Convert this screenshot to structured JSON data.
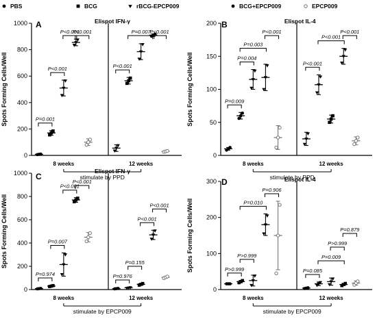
{
  "legend": [
    {
      "name": "PBS",
      "marker": "circle"
    },
    {
      "name": "BCG",
      "marker": "square"
    },
    {
      "name": "rBCG-EPCP009",
      "marker": "triangle-down"
    },
    {
      "name": "BCG+EPCP009",
      "marker": "circle"
    },
    {
      "name": "EPCP009",
      "marker": "circle-open"
    }
  ],
  "chart_data": [
    {
      "type": "scatter",
      "letter": "A",
      "title": "Elispot  IFN-γ",
      "ylabel": "Spots Forming Cells/Well",
      "ylim": [
        0,
        1000
      ],
      "yticks": [
        0,
        200,
        400,
        600,
        800,
        1000
      ],
      "groups": [
        "8 weeks",
        "12 weeks"
      ],
      "stimulus": "stimulate by PPD",
      "series": [
        {
          "group": "8 weeks",
          "name": "PBS",
          "marker": "circle",
          "color": "#000000",
          "mean": 8,
          "sd": 3,
          "points": [
            6,
            8,
            10
          ]
        },
        {
          "group": "8 weeks",
          "name": "BCG",
          "marker": "square",
          "color": "#000000",
          "mean": 170,
          "sd": 18,
          "points": [
            155,
            170,
            185
          ]
        },
        {
          "group": "8 weeks",
          "name": "rBCG-EPCP009",
          "marker": "triangle-down",
          "color": "#000000",
          "mean": 510,
          "sd": 60,
          "points": [
            455,
            510,
            565
          ]
        },
        {
          "group": "8 weeks",
          "name": "BCG+EPCP009",
          "marker": "triangle-down",
          "color": "#000000",
          "mean": 855,
          "sd": 25,
          "points": [
            835,
            855,
            875
          ]
        },
        {
          "group": "8 weeks",
          "name": "EPCP009",
          "marker": "circle-open",
          "color": "#777777",
          "mean": 100,
          "sd": 25,
          "points": [
            80,
            100,
            120
          ]
        },
        {
          "group": "12 weeks",
          "name": "PBS",
          "marker": "triangle-down",
          "color": "#000000",
          "mean": 55,
          "sd": 25,
          "points": [
            35,
            55,
            75
          ]
        },
        {
          "group": "12 weeks",
          "name": "BCG",
          "marker": "square",
          "color": "#000000",
          "mean": 565,
          "sd": 25,
          "points": [
            545,
            565,
            585
          ]
        },
        {
          "group": "12 weeks",
          "name": "rBCG-EPCP009",
          "marker": "triangle-down",
          "color": "#000000",
          "mean": 785,
          "sd": 60,
          "points": [
            730,
            785,
            840
          ]
        },
        {
          "group": "12 weeks",
          "name": "BCG+EPCP009",
          "marker": "circle",
          "color": "#000000",
          "mean": 910,
          "sd": 10,
          "points": [
            902,
            910,
            918
          ]
        },
        {
          "group": "12 weeks",
          "name": "EPCP009",
          "marker": "circle-open",
          "color": "#777777",
          "mean": 30,
          "sd": 5,
          "points": [
            26,
            30,
            34
          ]
        }
      ],
      "comparisons": [
        {
          "from": 0,
          "to": 1,
          "text": "P=0.001"
        },
        {
          "from": 1,
          "to": 2,
          "text": "P<0.001"
        },
        {
          "from": 2,
          "to": 3,
          "text": "P<0.001"
        },
        {
          "from": 3,
          "to": 4,
          "text": "P<0.001"
        },
        {
          "from": 5,
          "to": 6,
          "text": "P<0.001"
        },
        {
          "from": 6,
          "to": 8,
          "text": "P=0.007"
        },
        {
          "from": 8,
          "to": 9,
          "text": "P<0.001"
        }
      ]
    },
    {
      "type": "scatter",
      "letter": "B",
      "title": "Elispot  IL-4",
      "ylabel": "Spots Forming Cells/Well",
      "ylim": [
        0,
        200
      ],
      "yticks": [
        0,
        50,
        100,
        150,
        200
      ],
      "groups": [
        "8 weeks",
        "12 weeks"
      ],
      "stimulus": "stimulate by PPD",
      "series": [
        {
          "group": "8 weeks",
          "name": "PBS",
          "marker": "circle",
          "color": "#000000",
          "mean": 10,
          "sd": 2,
          "points": [
            8,
            10,
            12
          ]
        },
        {
          "group": "8 weeks",
          "name": "BCG",
          "marker": "circle",
          "color": "#000000",
          "mean": 60,
          "sd": 5,
          "points": [
            56,
            60,
            64
          ]
        },
        {
          "group": "8 weeks",
          "name": "rBCG-EPCP009",
          "marker": "triangle-down",
          "color": "#000000",
          "mean": 115,
          "sd": 15,
          "points": [
            102,
            115,
            128
          ]
        },
        {
          "group": "8 weeks",
          "name": "BCG+EPCP009",
          "marker": "triangle-down",
          "color": "#000000",
          "mean": 118,
          "sd": 20,
          "points": [
            100,
            118,
            136
          ]
        },
        {
          "group": "8 weeks",
          "name": "EPCP009",
          "marker": "circle-open",
          "color": "#777777",
          "mean": 27,
          "sd": 18,
          "points": [
            12,
            27,
            42
          ]
        },
        {
          "group": "12 weeks",
          "name": "PBS",
          "marker": "triangle-down",
          "color": "#000000",
          "mean": 25,
          "sd": 10,
          "points": [
            17,
            25,
            33
          ]
        },
        {
          "group": "12 weeks",
          "name": "BCG",
          "marker": "triangle-down",
          "color": "#000000",
          "mean": 107,
          "sd": 15,
          "points": [
            95,
            107,
            119
          ]
        },
        {
          "group": "12 weeks",
          "name": "rBCG-EPCP009",
          "marker": "square",
          "color": "#000000",
          "mean": 55,
          "sd": 6,
          "points": [
            50,
            55,
            60
          ]
        },
        {
          "group": "12 weeks",
          "name": "BCG+EPCP009",
          "marker": "triangle-down",
          "color": "#000000",
          "mean": 150,
          "sd": 12,
          "points": [
            140,
            150,
            160
          ]
        },
        {
          "group": "12 weeks",
          "name": "EPCP009",
          "marker": "circle-open",
          "color": "#777777",
          "mean": 22,
          "sd": 6,
          "points": [
            17,
            22,
            27
          ]
        }
      ],
      "comparisons": [
        {
          "from": 0,
          "to": 1,
          "text": "P=0.009"
        },
        {
          "from": 1,
          "to": 2,
          "text": "P=0.004"
        },
        {
          "from": 1,
          "to": 3,
          "text": "P=0.003"
        },
        {
          "from": 3,
          "to": 4,
          "text": "P<0.001"
        },
        {
          "from": 5,
          "to": 6,
          "text": "P<0.001"
        },
        {
          "from": 6,
          "to": 8,
          "text": "P<0.001"
        },
        {
          "from": 8,
          "to": 9,
          "text": "P<0.001"
        }
      ]
    },
    {
      "type": "scatter",
      "letter": "C",
      "title": "Elispot  IFN-γ",
      "ylabel": "Spots Forming Cells/Well",
      "ylim": [
        0,
        1000
      ],
      "yticks": [
        0,
        200,
        400,
        600,
        800,
        1000
      ],
      "groups": [
        "8 weeks",
        "12 weeks"
      ],
      "stimulus": "stimulate by EPCP009",
      "series": [
        {
          "group": "8 weeks",
          "name": "PBS",
          "marker": "circle",
          "color": "#000000",
          "mean": 8,
          "sd": 2,
          "points": [
            6,
            8,
            10
          ]
        },
        {
          "group": "8 weeks",
          "name": "BCG",
          "marker": "square",
          "color": "#000000",
          "mean": 30,
          "sd": 5,
          "points": [
            26,
            30,
            34
          ]
        },
        {
          "group": "8 weeks",
          "name": "rBCG-EPCP009",
          "marker": "triangle-down",
          "color": "#000000",
          "mean": 215,
          "sd": 100,
          "points": [
            130,
            215,
            300
          ]
        },
        {
          "group": "8 weeks",
          "name": "BCG+EPCP009",
          "marker": "square",
          "color": "#000000",
          "mean": 770,
          "sd": 20,
          "points": [
            755,
            770,
            785
          ]
        },
        {
          "group": "8 weeks",
          "name": "EPCP009",
          "marker": "circle-open",
          "color": "#777777",
          "mean": 450,
          "sd": 40,
          "points": [
            415,
            450,
            485
          ]
        },
        {
          "group": "12 weeks",
          "name": "PBS",
          "marker": "circle",
          "color": "#000000",
          "mean": 8,
          "sd": 2,
          "points": [
            6,
            8,
            10
          ]
        },
        {
          "group": "12 weeks",
          "name": "BCG",
          "marker": "triangle-down",
          "color": "#000000",
          "mean": 15,
          "sd": 3,
          "points": [
            12,
            15,
            18
          ]
        },
        {
          "group": "12 weeks",
          "name": "rBCG-EPCP009",
          "marker": "square",
          "color": "#000000",
          "mean": 45,
          "sd": 8,
          "points": [
            38,
            45,
            52
          ]
        },
        {
          "group": "12 weeks",
          "name": "BCG+EPCP009",
          "marker": "triangle-down",
          "color": "#000000",
          "mean": 470,
          "sd": 40,
          "points": [
            435,
            470,
            505
          ]
        },
        {
          "group": "12 weeks",
          "name": "EPCP009",
          "marker": "circle-open",
          "color": "#777777",
          "mean": 105,
          "sd": 8,
          "points": [
            98,
            105,
            112
          ]
        }
      ],
      "comparisons": [
        {
          "from": 0,
          "to": 1,
          "text": "P=0.974"
        },
        {
          "from": 1,
          "to": 2,
          "text": "P=0.007"
        },
        {
          "from": 2,
          "to": 3,
          "text": "P<0.001"
        },
        {
          "from": 3,
          "to": 4,
          "text": "P<0.001"
        },
        {
          "from": 5,
          "to": 6,
          "text": "P=0.976"
        },
        {
          "from": 6,
          "to": 7,
          "text": "P=0.155"
        },
        {
          "from": 7,
          "to": 8,
          "text": "P<0.001"
        },
        {
          "from": 8,
          "to": 9,
          "text": "P<0.001"
        }
      ]
    },
    {
      "type": "scatter",
      "letter": "D",
      "title": "Elispot  IL-4",
      "ylabel": "Spots Forming Cells/Well",
      "ylim": [
        0,
        300
      ],
      "yticks": [
        0,
        100,
        200,
        300
      ],
      "groups": [
        "8 weeks",
        "12 weeks"
      ],
      "stimulus": "stimulate by EPCP009",
      "series": [
        {
          "group": "8 weeks",
          "name": "PBS",
          "marker": "circle",
          "color": "#000000",
          "mean": 16,
          "sd": 1,
          "points": [
            16,
            16,
            16
          ]
        },
        {
          "group": "8 weeks",
          "name": "BCG",
          "marker": "square",
          "color": "#000000",
          "mean": 22,
          "sd": 3,
          "points": [
            19,
            22,
            25
          ]
        },
        {
          "group": "8 weeks",
          "name": "rBCG-EPCP009",
          "marker": "triangle-down",
          "color": "#000000",
          "mean": 25,
          "sd": 15,
          "points": [
            12,
            25,
            38
          ]
        },
        {
          "group": "8 weeks",
          "name": "BCG+EPCP009",
          "marker": "triangle-down",
          "color": "#000000",
          "mean": 180,
          "sd": 30,
          "points": [
            155,
            180,
            205
          ]
        },
        {
          "group": "8 weeks",
          "name": "EPCP009",
          "marker": "circle-open",
          "color": "#777777",
          "mean": 150,
          "sd": 95,
          "points": [
            45,
            150,
            235
          ]
        },
        {
          "group": "12 weeks",
          "name": "PBS",
          "marker": "circle",
          "color": "#000000",
          "mean": 4,
          "sd": 1,
          "points": [
            3,
            4,
            5
          ]
        },
        {
          "group": "12 weeks",
          "name": "BCG",
          "marker": "triangle-down",
          "color": "#000000",
          "mean": 16,
          "sd": 5,
          "points": [
            12,
            16,
            20
          ]
        },
        {
          "group": "12 weeks",
          "name": "rBCG-EPCP009",
          "marker": "triangle-down",
          "color": "#000000",
          "mean": 22,
          "sd": 10,
          "points": [
            14,
            22,
            30
          ]
        },
        {
          "group": "12 weeks",
          "name": "BCG+EPCP009",
          "marker": "square",
          "color": "#000000",
          "mean": 14,
          "sd": 3,
          "points": [
            11,
            14,
            17
          ]
        },
        {
          "group": "12 weeks",
          "name": "EPCP009",
          "marker": "circle-open",
          "color": "#777777",
          "mean": 18,
          "sd": 6,
          "points": [
            13,
            18,
            23
          ]
        }
      ],
      "comparisons": [
        {
          "from": 0,
          "to": 1,
          "text": "P>0.999"
        },
        {
          "from": 1,
          "to": 2,
          "text": "P>0.999"
        },
        {
          "from": 1,
          "to": 3,
          "text": "P=0.010"
        },
        {
          "from": 3,
          "to": 4,
          "text": "P=0.906"
        },
        {
          "from": 5,
          "to": 6,
          "text": "P=0.085"
        },
        {
          "from": 6,
          "to": 8,
          "text": "P=0.009"
        },
        {
          "from": 7,
          "to": 8,
          "text": "P>0.999"
        },
        {
          "from": 8,
          "to": 9,
          "text": "P=0.879"
        }
      ]
    }
  ]
}
